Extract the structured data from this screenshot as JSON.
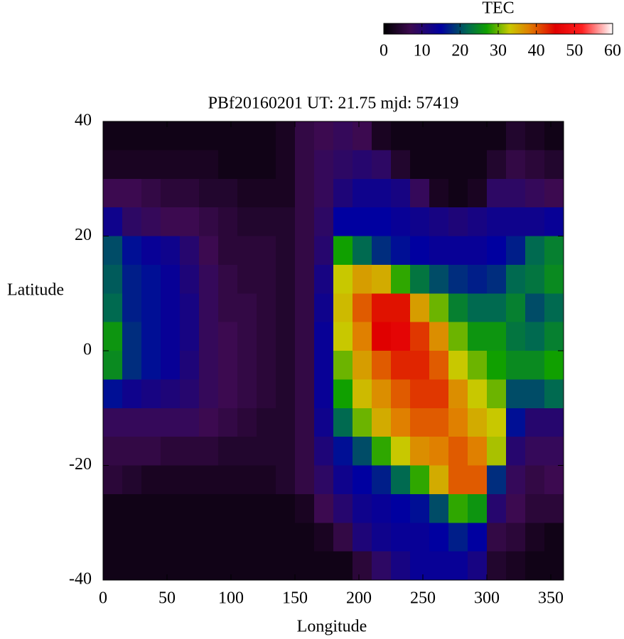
{
  "chart_data": {
    "type": "heatmap",
    "title": "PBf20160201  UT: 21.75  mjd: 57419",
    "xlabel": "Longitude",
    "ylabel": "Latitude",
    "xlim": [
      0,
      360
    ],
    "ylim": [
      -40,
      40
    ],
    "xticks": [
      0,
      50,
      100,
      150,
      200,
      250,
      300,
      350
    ],
    "yticks": [
      -40,
      -20,
      0,
      20,
      40
    ],
    "xbins": [
      0,
      15,
      30,
      45,
      60,
      75,
      90,
      105,
      120,
      135,
      150,
      165,
      180,
      195,
      210,
      225,
      240,
      255,
      270,
      285,
      300,
      315,
      330,
      345,
      360
    ],
    "ybins": [
      40,
      35,
      30,
      25,
      20,
      15,
      10,
      5,
      0,
      -5,
      -10,
      -15,
      -20,
      -25,
      -30,
      -35,
      -40
    ],
    "z": [
      [
        2,
        2,
        2,
        2,
        2,
        2,
        2,
        2,
        2,
        3,
        6,
        7,
        8,
        7,
        3,
        2,
        2,
        2,
        2,
        2,
        2,
        4,
        3,
        2
      ],
      [
        3,
        3,
        3,
        3,
        3,
        3,
        2,
        2,
        2,
        3,
        6,
        8,
        9,
        10,
        9,
        4,
        2,
        2,
        2,
        2,
        4,
        6,
        5,
        4
      ],
      [
        7,
        7,
        6,
        5,
        5,
        4,
        4,
        3,
        3,
        3,
        6,
        8,
        11,
        13,
        13,
        12,
        8,
        3,
        2,
        3,
        9,
        9,
        8,
        7
      ],
      [
        13,
        9,
        8,
        7,
        7,
        6,
        5,
        4,
        4,
        4,
        6,
        9,
        15,
        15,
        15,
        14,
        13,
        12,
        11,
        12,
        13,
        13,
        13,
        14
      ],
      [
        20,
        16,
        14,
        13,
        10,
        7,
        5,
        5,
        5,
        4,
        6,
        10,
        27,
        22,
        18,
        16,
        15,
        14,
        14,
        14,
        15,
        17,
        22,
        24
      ],
      [
        21,
        17,
        16,
        14,
        11,
        8,
        6,
        5,
        5,
        4,
        6,
        12,
        33,
        36,
        35,
        28,
        23,
        20,
        18,
        17,
        18,
        22,
        23,
        25
      ],
      [
        22,
        17,
        16,
        14,
        12,
        8,
        6,
        6,
        5,
        4,
        6,
        13,
        34,
        40,
        44,
        44,
        36,
        30,
        24,
        22,
        22,
        24,
        20,
        22
      ],
      [
        26,
        18,
        16,
        14,
        12,
        8,
        7,
        6,
        5,
        4,
        6,
        14,
        33,
        38,
        45,
        46,
        42,
        37,
        30,
        26,
        26,
        23,
        22,
        24
      ],
      [
        25,
        18,
        16,
        14,
        11,
        8,
        7,
        6,
        5,
        4,
        6,
        14,
        30,
        36,
        40,
        43,
        43,
        40,
        33,
        30,
        27,
        25,
        25,
        27
      ],
      [
        16,
        13,
        12,
        11,
        10,
        8,
        7,
        6,
        5,
        4,
        6,
        14,
        27,
        34,
        37,
        40,
        42,
        42,
        37,
        33,
        30,
        20,
        20,
        22
      ],
      [
        8,
        8,
        8,
        8,
        8,
        7,
        6,
        5,
        4,
        4,
        6,
        13,
        22,
        30,
        35,
        38,
        40,
        40,
        38,
        35,
        33,
        16,
        10,
        10
      ],
      [
        6,
        6,
        6,
        5,
        5,
        5,
        4,
        4,
        4,
        4,
        6,
        11,
        16,
        20,
        28,
        33,
        37,
        38,
        40,
        38,
        32,
        10,
        8,
        8
      ],
      [
        5,
        4,
        3,
        3,
        3,
        3,
        3,
        3,
        3,
        4,
        6,
        9,
        13,
        15,
        17,
        22,
        28,
        35,
        40,
        40,
        18,
        8,
        6,
        7
      ],
      [
        2,
        2,
        2,
        2,
        2,
        2,
        2,
        2,
        2,
        2,
        3,
        7,
        10,
        13,
        14,
        15,
        16,
        20,
        28,
        26,
        10,
        7,
        5,
        5
      ],
      [
        2,
        2,
        2,
        2,
        2,
        2,
        2,
        2,
        2,
        2,
        2,
        3,
        6,
        11,
        13,
        14,
        14,
        15,
        17,
        15,
        6,
        5,
        3,
        2
      ],
      [
        2,
        2,
        2,
        2,
        2,
        2,
        2,
        2,
        2,
        2,
        2,
        2,
        2,
        5,
        9,
        12,
        14,
        14,
        14,
        12,
        4,
        3,
        2,
        2
      ]
    ],
    "colorbar_title": "TEC",
    "clim": [
      0,
      60
    ],
    "cticks": [
      0,
      10,
      20,
      30,
      40,
      50,
      60
    ],
    "colorscale": [
      [
        0,
        "#000000"
      ],
      [
        7,
        "#3c0a50"
      ],
      [
        15,
        "#0000a0"
      ],
      [
        22,
        "#006a50"
      ],
      [
        27,
        "#10a000"
      ],
      [
        33,
        "#c8c800"
      ],
      [
        38,
        "#e08000"
      ],
      [
        45,
        "#e00000"
      ],
      [
        52,
        "#ff2020"
      ],
      [
        60,
        "#ffffff"
      ]
    ]
  }
}
